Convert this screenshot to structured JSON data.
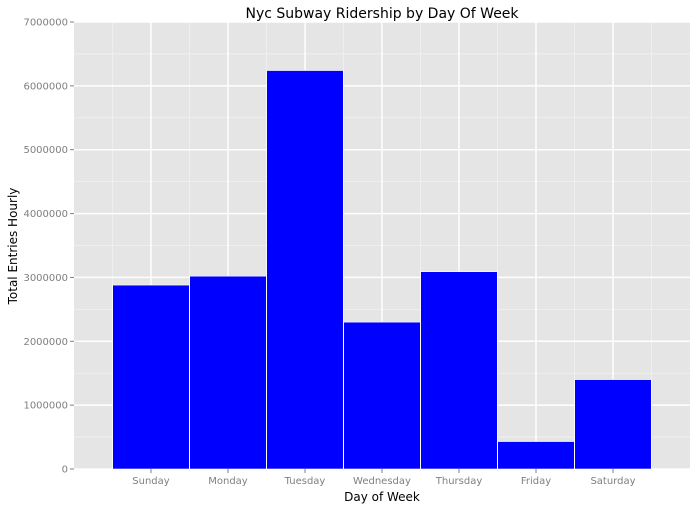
{
  "chart_data": {
    "type": "bar",
    "title": "Nyc Subway Ridership by Day Of Week",
    "xlabel": "Day of Week",
    "ylabel": "Total Entries Hourly",
    "categories": [
      "Sunday",
      "Monday",
      "Tuesday",
      "Wednesday",
      "Thursday",
      "Friday",
      "Saturday"
    ],
    "values": [
      2880000,
      3020000,
      6240000,
      2300000,
      3090000,
      430000,
      1400000
    ],
    "ylim": [
      0,
      7000000
    ],
    "yticks": [
      0,
      1000000,
      2000000,
      3000000,
      4000000,
      5000000,
      6000000,
      7000000
    ],
    "ytick_labels": [
      "0",
      "1000000",
      "2000000",
      "3000000",
      "4000000",
      "5000000",
      "6000000",
      "7000000"
    ],
    "grid": true,
    "colors": {
      "bar": "#0000ff",
      "panel_background": "#e5e5e5",
      "grid_major": "#ffffff",
      "grid_minor": "#f2f2f2"
    }
  }
}
